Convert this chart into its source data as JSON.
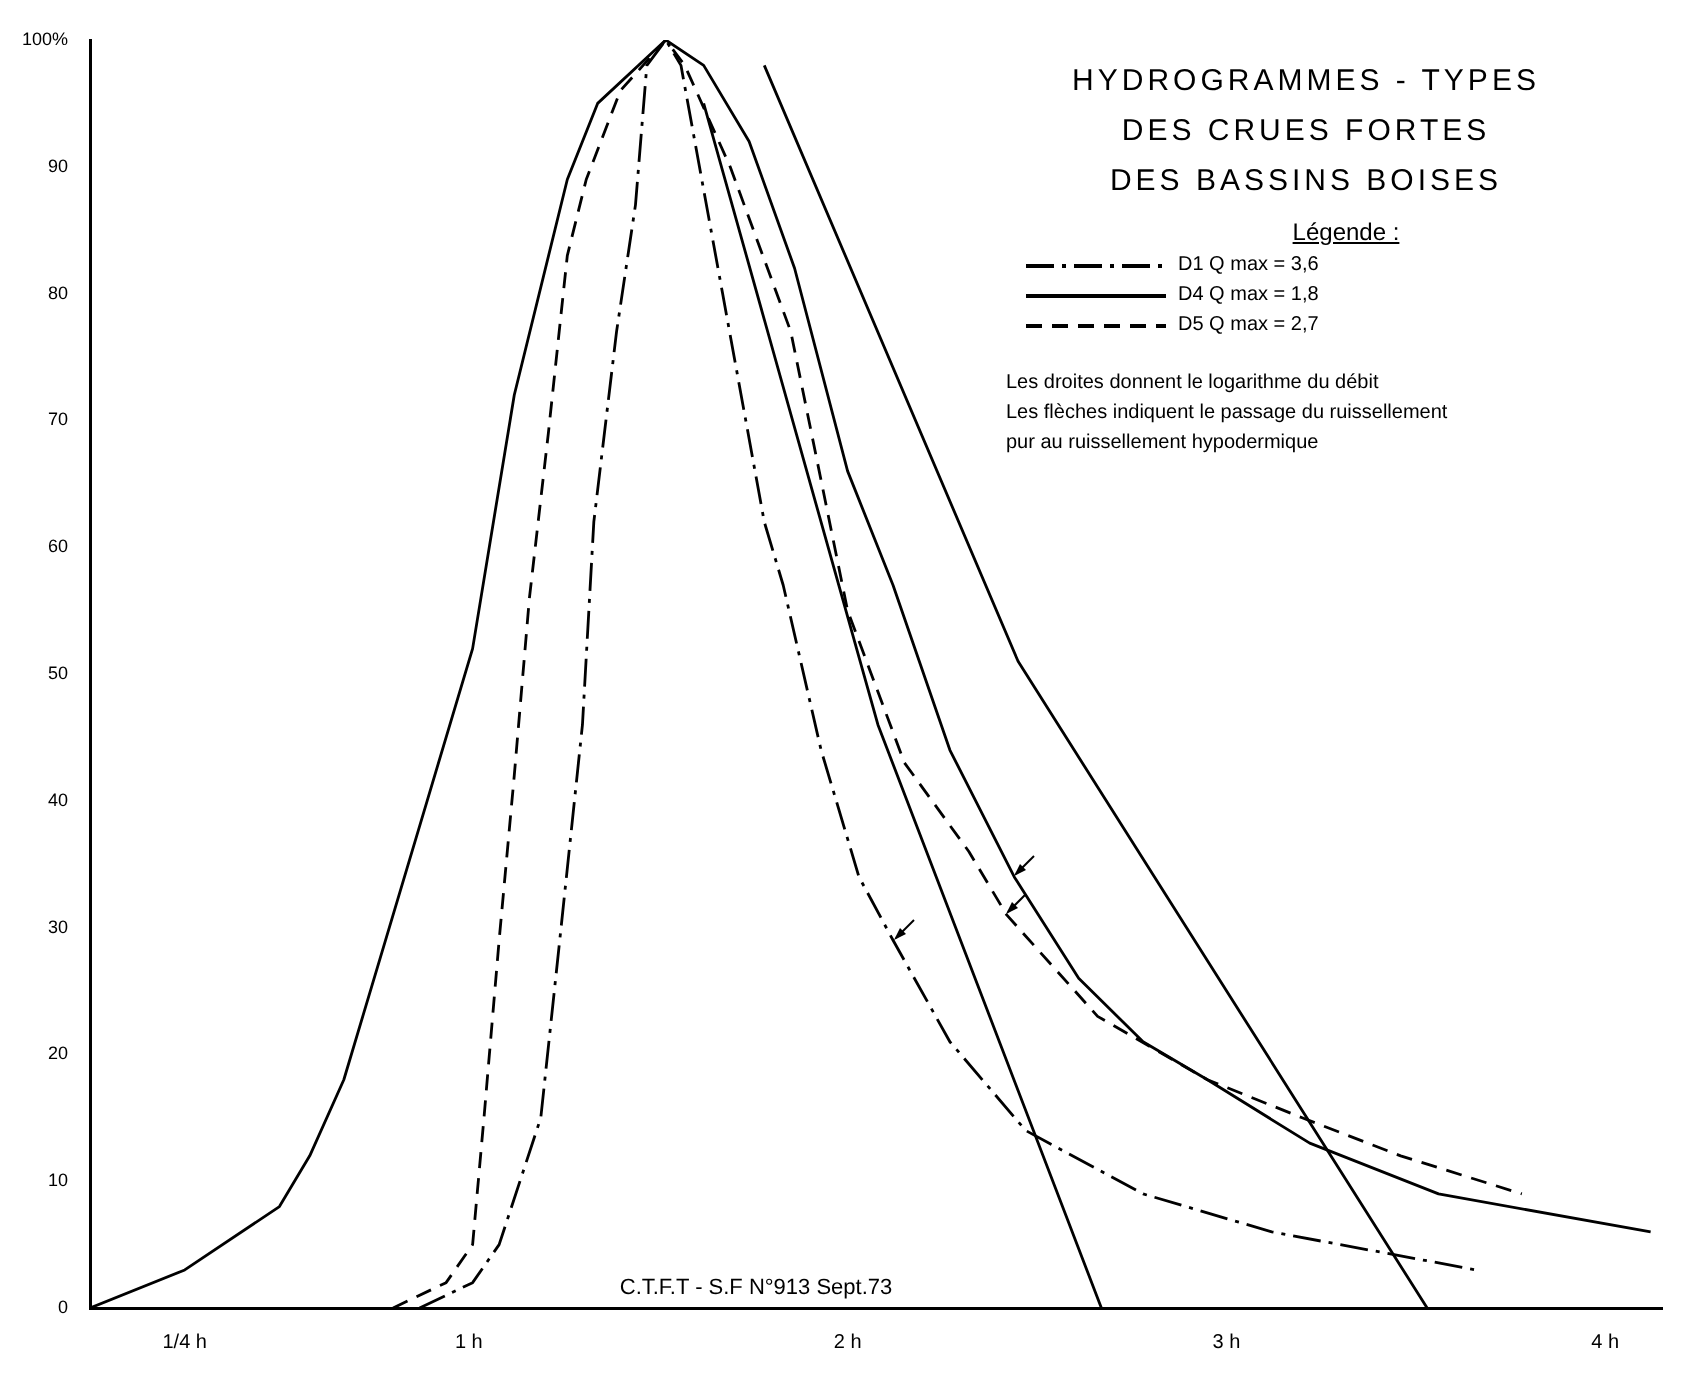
{
  "chart_data": {
    "type": "line",
    "title": "HYDROGRAMMES - TYPES\nDES CRUES FORTES\nDES BASSINS BOISES",
    "legend_title": "Légende :",
    "legend": "top right",
    "grid": false,
    "marker": "none",
    "xlim": [
      0,
      4.15
    ],
    "xticks": [
      {
        "value": 0.25,
        "label": "1/4 h"
      },
      {
        "value": 1,
        "label": "1 h"
      },
      {
        "value": 2,
        "label": "2 h"
      },
      {
        "value": 3,
        "label": "3 h"
      },
      {
        "value": 4,
        "label": "4 h"
      }
    ],
    "ylim": [
      0,
      100
    ],
    "yticks": [
      0,
      10,
      20,
      30,
      40,
      50,
      60,
      70,
      80,
      90,
      {
        "value": 100,
        "label": "100%"
      }
    ],
    "series": [
      {
        "name": "D1 Q max = 3,6",
        "color": "#000000",
        "line_style": "dashdot",
        "x": [
          0.87,
          1.01,
          1.08,
          1.19,
          1.24,
          1.3,
          1.33,
          1.39,
          1.44,
          1.47,
          1.52,
          1.56,
          1.67,
          1.78,
          1.83,
          1.93,
          2.03,
          2.12,
          2.27,
          2.47,
          2.78,
          3.12,
          3.66
        ],
        "values": [
          0,
          2,
          5,
          15,
          29,
          46,
          62,
          77,
          87,
          98,
          100,
          98,
          80,
          62,
          57,
          44,
          34,
          29,
          21,
          14,
          9,
          6,
          3
        ]
      },
      {
        "name": "D4 Q max = 1,8",
        "color": "#000000",
        "line_style": "solid",
        "x": [
          0,
          0.25,
          0.5,
          0.58,
          0.67,
          0.78,
          0.89,
          1.01,
          1.12,
          1.26,
          1.34,
          1.52,
          1.62,
          1.74,
          1.86,
          2.0,
          2.12,
          2.27,
          2.44,
          2.61,
          2.78,
          2.95,
          3.22,
          3.56,
          4.12
        ],
        "values": [
          0,
          3,
          8,
          12,
          18,
          29,
          40,
          52,
          72,
          89,
          95,
          100,
          98,
          92,
          82,
          66,
          57,
          44,
          34,
          26,
          21,
          18,
          13,
          9,
          6
        ]
      },
      {
        "name": "D5 Q max = 2,7",
        "color": "#000000",
        "line_style": "dashed",
        "x": [
          0.8,
          0.94,
          1.01,
          1.04,
          1.08,
          1.12,
          1.16,
          1.21,
          1.26,
          1.31,
          1.4,
          1.52,
          1.57,
          1.69,
          1.85,
          2.0,
          2.15,
          2.32,
          2.42,
          2.66,
          2.95,
          3.2,
          3.46,
          3.78
        ],
        "values": [
          0,
          2,
          5,
          15,
          29,
          42,
          56,
          69,
          83,
          89,
          96,
          100,
          98,
          90,
          77,
          55,
          43,
          36,
          31,
          23,
          18,
          15,
          12,
          9
        ]
      },
      {
        "color": "#000000",
        "line_style": "solid",
        "x": [
          1.62,
          2.08,
          2.67
        ],
        "values": [
          95,
          46,
          0
        ]
      },
      {
        "color": "#000000",
        "line_style": "solid",
        "x": [
          1.78,
          2.45,
          3.53
        ],
        "values": [
          98,
          51,
          0
        ]
      }
    ],
    "annotations": [
      "Les droites donnent le logarithme du débit\nLes flèches indiquent le passage du ruissellement\npur au ruissellement hypodermique",
      "C.T.F.T - S.F N°913 Sept.73"
    ]
  }
}
